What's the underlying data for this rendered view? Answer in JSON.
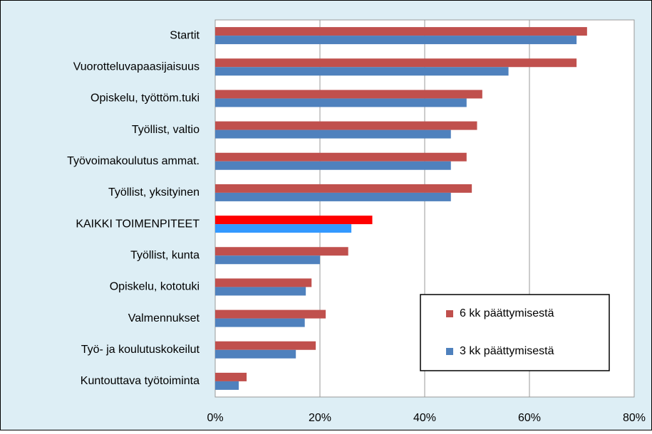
{
  "chart_data": {
    "type": "hbar",
    "categories": [
      "Startit",
      "Vuorotteluvapaasijaisuus",
      "Opiskelu, työttöm.tuki",
      "Työllist, valtio",
      "Työvoimakoulutus ammat.",
      "Työllist, yksityinen",
      "KAIKKI TOIMENPITEET",
      "Työllist, kunta",
      "Opiskelu, kototuki",
      "Valmennukset",
      "Työ- ja koulutuskokeilut",
      "Kuntouttava työtoiminta"
    ],
    "series": [
      {
        "name": "6 kk päättymisestä",
        "color": "#c0504d",
        "colors": [
          "#c0504d",
          "#c0504d",
          "#c0504d",
          "#c0504d",
          "#c0504d",
          "#c0504d",
          "#ff0000",
          "#c0504d",
          "#c0504d",
          "#c0504d",
          "#c0504d",
          "#c0504d"
        ],
        "values": [
          71,
          69,
          51,
          50,
          48,
          49,
          30,
          25.4,
          18.4,
          21.1,
          19.2,
          6
        ]
      },
      {
        "name": "3 kk päättymisestä",
        "color": "#4f81bd",
        "colors": [
          "#4f81bd",
          "#4f81bd",
          "#4f81bd",
          "#4f81bd",
          "#4f81bd",
          "#4f81bd",
          "#3399ff",
          "#4f81bd",
          "#4f81bd",
          "#4f81bd",
          "#4f81bd",
          "#4f81bd"
        ],
        "values": [
          69,
          56,
          48,
          45,
          45,
          45,
          26,
          20,
          17.3,
          17.1,
          15.4,
          4.5
        ]
      }
    ],
    "xlim": [
      0,
      80
    ],
    "xticks": [
      {
        "value": 0,
        "label": "0%"
      },
      {
        "value": 20,
        "label": "20%"
      },
      {
        "value": 40,
        "label": "40%"
      },
      {
        "value": 60,
        "label": "60%"
      },
      {
        "value": 80,
        "label": "80%"
      }
    ],
    "grid": true,
    "legend": "lower right"
  }
}
